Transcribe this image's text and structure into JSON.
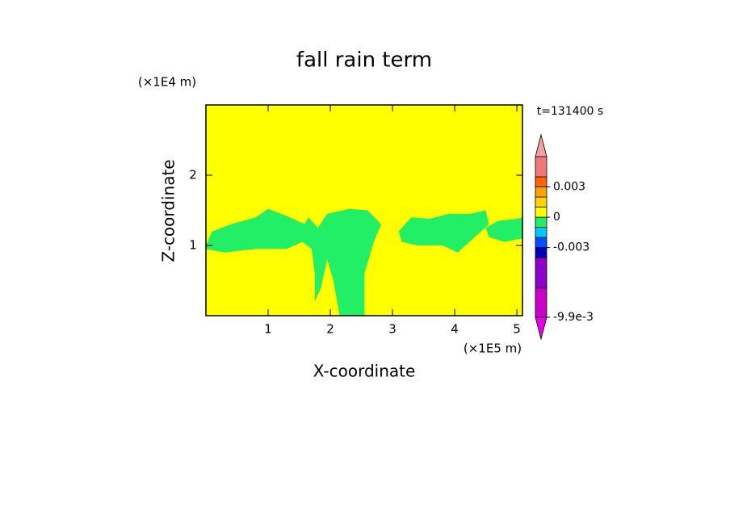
{
  "chart_data": {
    "type": "contour",
    "title": "fall rain term",
    "x_label": "X-coordinate",
    "y_label": "Z-coordinate",
    "x_unit": "(×1E5 m)",
    "y_unit": "(×1E4 m)",
    "time_label": "t=131400 s",
    "xlim": [
      0,
      5.09
    ],
    "ylim": [
      0,
      3
    ],
    "xticks": [
      1,
      2,
      3,
      4,
      5
    ],
    "yticks": [
      1,
      2
    ],
    "levels": [
      -0.0099,
      -0.007,
      -0.004,
      -0.003,
      -0.002,
      -0.001,
      0,
      0.001,
      0.002,
      0.003,
      0.004,
      0.006
    ],
    "colors": [
      "#e600e6",
      "#c800c8",
      "#8c00c8",
      "#0000b4",
      "#0050ff",
      "#00c8ff",
      "#22ee66",
      "#ffff00",
      "#ffd200",
      "#ffa000",
      "#ff6400",
      "#f07878",
      "#f0a0a0"
    ],
    "colorbar_ticks": [
      {
        "value": -0.0099,
        "label": "-9.9e-3"
      },
      -0.003,
      0,
      0.003
    ],
    "background_value": 0,
    "regions": [
      {
        "value": -0.0005,
        "x": [
          0,
          0.1,
          0.4,
          0.8,
          1.0,
          1.3,
          1.6,
          1.55,
          1.3,
          0.8,
          0.3,
          0
        ],
        "z": [
          1.0,
          1.2,
          1.3,
          1.4,
          1.52,
          1.42,
          1.3,
          1.05,
          0.95,
          0.95,
          0.9,
          0.95
        ]
      },
      {
        "value": -0.0005,
        "x": [
          1.55,
          1.65,
          1.8,
          1.95,
          2.3,
          2.6,
          2.82,
          2.7,
          2.55,
          2.55,
          2.15,
          2.05,
          1.95,
          1.85,
          1.75,
          1.75,
          1.7,
          1.55
        ],
        "z": [
          1.25,
          1.4,
          1.25,
          1.45,
          1.52,
          1.5,
          1.3,
          1.05,
          0.6,
          0,
          0,
          0.5,
          0.8,
          0.4,
          0.2,
          0.6,
          0.95,
          1.05
        ]
      },
      {
        "value": -0.0005,
        "x": [
          3.1,
          3.3,
          3.6,
          3.9,
          4.25,
          4.5,
          4.55,
          4.3,
          4.05,
          3.8,
          3.4,
          3.15
        ],
        "z": [
          1.2,
          1.4,
          1.38,
          1.45,
          1.45,
          1.5,
          1.3,
          1.1,
          0.9,
          1.0,
          1.0,
          1.05
        ]
      },
      {
        "value": -0.0005,
        "x": [
          4.5,
          4.7,
          5.0,
          5.09,
          5.09,
          4.8,
          4.55
        ],
        "z": [
          1.25,
          1.35,
          1.38,
          1.4,
          1.1,
          1.05,
          1.12
        ]
      }
    ]
  }
}
